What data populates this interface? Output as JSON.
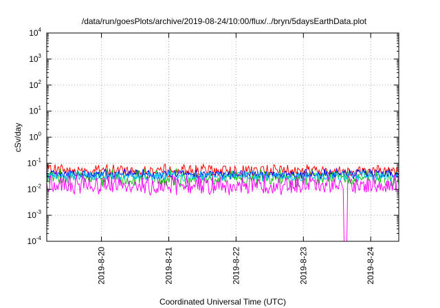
{
  "chart_data": {
    "type": "line",
    "title": "/data/run/goesPlots/archive/2019-08-24/10:00/flux/../bryn/5daysEarthData.plot",
    "xlabel": "Coordinated Universal Time (UTC)",
    "ylabel": "cSv/day",
    "y_scale": "log",
    "ylim": [
      0.0001,
      10000
    ],
    "xlim": [
      "2019-08-19 04:30",
      "2019-08-24 10:00"
    ],
    "grid": true,
    "y_ticks": [
      {
        "value": 0.0001,
        "base": "10",
        "exp": "-4"
      },
      {
        "value": 0.001,
        "base": "10",
        "exp": "-3"
      },
      {
        "value": 0.01,
        "base": "10",
        "exp": "-2"
      },
      {
        "value": 0.1,
        "base": "10",
        "exp": "-1"
      },
      {
        "value": 1,
        "base": "10",
        "exp": "0"
      },
      {
        "value": 10,
        "base": "10",
        "exp": "1"
      },
      {
        "value": 100,
        "base": "10",
        "exp": "2"
      },
      {
        "value": 1000,
        "base": "10",
        "exp": "3"
      },
      {
        "value": 10000,
        "base": "10",
        "exp": "4"
      }
    ],
    "x_ticks": [
      {
        "value": "2019-08-20",
        "label": "2019-8-20"
      },
      {
        "value": "2019-08-21",
        "label": "2019-8-21"
      },
      {
        "value": "2019-08-22",
        "label": "2019-8-22"
      },
      {
        "value": "2019-08-23",
        "label": "2019-8-23"
      },
      {
        "value": "2019-08-24",
        "label": "2019-8-24"
      }
    ],
    "series": [
      {
        "color": "#ff0000",
        "typical_range": [
          0.03,
          0.09
        ]
      },
      {
        "color": "#00c000",
        "typical_range": [
          0.012,
          0.06
        ]
      },
      {
        "color": "#0000ff",
        "typical_range": [
          0.025,
          0.06
        ]
      },
      {
        "color": "#00c0ff",
        "typical_range": [
          0.02,
          0.05
        ]
      },
      {
        "color": "#ff00ff",
        "typical_range": [
          0.006,
          0.035
        ],
        "dip": {
          "x": "2019-08-23 15:00",
          "min": 0.0001
        }
      }
    ]
  }
}
